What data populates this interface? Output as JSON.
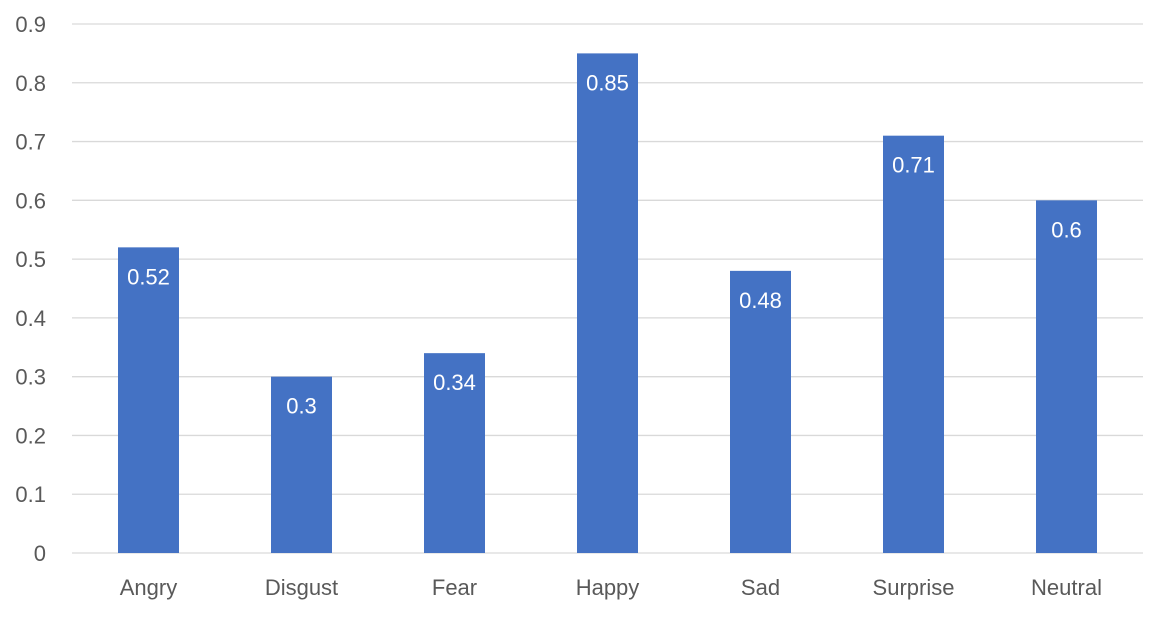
{
  "chart_data": {
    "type": "bar",
    "categories": [
      "Angry",
      "Disgust",
      "Fear",
      "Happy",
      "Sad",
      "Surprise",
      "Neutral"
    ],
    "values": [
      0.52,
      0.3,
      0.34,
      0.85,
      0.48,
      0.71,
      0.6
    ],
    "data_labels": [
      "0.52",
      "0.3",
      "0.34",
      "0.85",
      "0.48",
      "0.71",
      "0.6"
    ],
    "y_ticks": [
      0,
      0.1,
      0.2,
      0.3,
      0.4,
      0.5,
      0.6,
      0.7,
      0.8,
      0.9
    ],
    "y_tick_labels": [
      "0",
      "0.1",
      "0.2",
      "0.3",
      "0.4",
      "0.5",
      "0.6",
      "0.7",
      "0.8",
      "0.9"
    ],
    "ylim": [
      0,
      0.9
    ],
    "title": "",
    "xlabel": "",
    "ylabel": "",
    "grid": "horizontal",
    "legend": "none",
    "colors": {
      "bar": "#4472c4",
      "grid": "#d9d9d9",
      "tick_text": "#595959",
      "data_label_text": "#ffffff"
    }
  }
}
